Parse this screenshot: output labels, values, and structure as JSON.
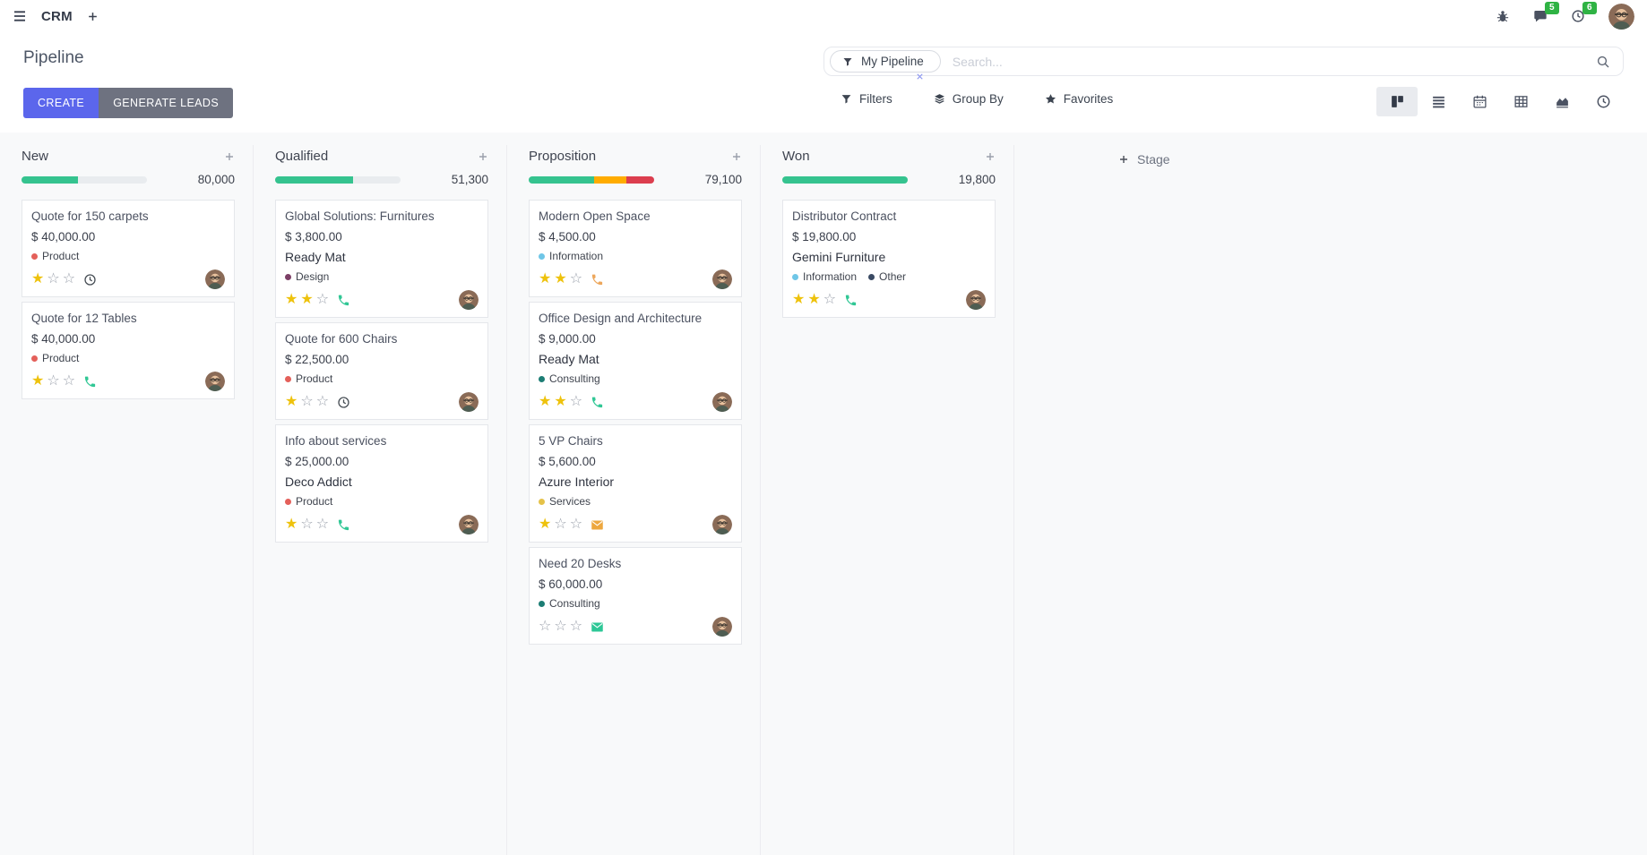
{
  "navbar": {
    "app_name": "CRM",
    "messages_badge": "5",
    "activities_badge": "6"
  },
  "control_panel": {
    "title": "Pipeline",
    "create_label": "CREATE",
    "generate_leads_label": "GENERATE LEADS",
    "search": {
      "facet": "My Pipeline",
      "placeholder": "Search..."
    },
    "menus": {
      "filters": "Filters",
      "group_by": "Group By",
      "favorites": "Favorites"
    }
  },
  "view_switcher": {
    "items": [
      {
        "icon": "kanban-icon",
        "active": true
      },
      {
        "icon": "list-icon",
        "active": false
      },
      {
        "icon": "calendar-icon",
        "active": false
      },
      {
        "icon": "pivot-icon",
        "active": false
      },
      {
        "icon": "graph-icon",
        "active": false
      },
      {
        "icon": "activity-icon",
        "active": false
      }
    ]
  },
  "icons": {
    "menu": "menu-icon",
    "add": "plus-icon",
    "bug": "bug-icon",
    "messages": "chat-icon",
    "activities": "clock-icon",
    "filter": "funnel-icon",
    "group_by": "layers-icon",
    "favorites": "star-icon",
    "search": "search-icon",
    "facet_remove": "close-icon",
    "add_record": "plus-icon",
    "add_stage": "plus-icon",
    "avatar": "avatar-icon"
  },
  "board": {
    "add_stage_label": "Stage",
    "columns": [
      {
        "name": "New",
        "total": "80,000",
        "progress": [
          {
            "color": "#35c38f",
            "pct": 45
          }
        ],
        "cards": [
          {
            "title": "Quote for 150 carpets",
            "amount": "$ 40,000.00",
            "tags": [
              {
                "label": "Product",
                "color": "#e4605a"
              }
            ],
            "stars": 1,
            "activity": {
              "icon": "clock-icon",
              "color": "#495057"
            }
          },
          {
            "title": "Quote for 12 Tables",
            "amount": "$ 40,000.00",
            "tags": [
              {
                "label": "Product",
                "color": "#e4605a"
              }
            ],
            "stars": 1,
            "activity": {
              "icon": "phone-icon",
              "color": "#31c795"
            }
          }
        ]
      },
      {
        "name": "Qualified",
        "total": "51,300",
        "progress": [
          {
            "color": "#35c38f",
            "pct": 62
          }
        ],
        "cards": [
          {
            "title": "Global Solutions: Furnitures",
            "amount": "$ 3,800.00",
            "partner": "Ready Mat",
            "tags": [
              {
                "label": "Design",
                "color": "#7c3f66"
              }
            ],
            "stars": 2,
            "activity": {
              "icon": "phone-icon",
              "color": "#31c795"
            }
          },
          {
            "title": "Quote for 600 Chairs",
            "amount": "$ 22,500.00",
            "tags": [
              {
                "label": "Product",
                "color": "#e4605a"
              }
            ],
            "stars": 1,
            "activity": {
              "icon": "clock-icon",
              "color": "#495057"
            }
          },
          {
            "title": "Info about services",
            "amount": "$ 25,000.00",
            "partner": "Deco Addict",
            "tags": [
              {
                "label": "Product",
                "color": "#e4605a"
              }
            ],
            "stars": 1,
            "activity": {
              "icon": "phone-icon",
              "color": "#31c795"
            }
          }
        ]
      },
      {
        "name": "Proposition",
        "total": "79,100",
        "progress": [
          {
            "color": "#35c38f",
            "pct": 52
          },
          {
            "color": "#ffac00",
            "pct": 26
          },
          {
            "color": "#dc3e4e",
            "pct": 22
          }
        ],
        "cards": [
          {
            "title": "Modern Open Space",
            "amount": "$ 4,500.00",
            "tags": [
              {
                "label": "Information",
                "color": "#6fc6e7"
              }
            ],
            "stars": 2,
            "activity": {
              "icon": "phone-icon",
              "color": "#eda75c"
            }
          },
          {
            "title": "Office Design and Architecture",
            "amount": "$ 9,000.00",
            "partner": "Ready Mat",
            "tags": [
              {
                "label": "Consulting",
                "color": "#1c7d74"
              }
            ],
            "stars": 2,
            "activity": {
              "icon": "phone-icon",
              "color": "#31c795"
            }
          },
          {
            "title": "5 VP Chairs",
            "amount": "$ 5,600.00",
            "partner": "Azure Interior",
            "tags": [
              {
                "label": "Services",
                "color": "#e5c249"
              }
            ],
            "stars": 1,
            "activity": {
              "icon": "envelope-icon",
              "color": "#eda73f"
            }
          },
          {
            "title": "Need 20 Desks",
            "amount": "$ 60,000.00",
            "tags": [
              {
                "label": "Consulting",
                "color": "#1c7d74"
              }
            ],
            "stars": 0,
            "activity": {
              "icon": "envelope-icon",
              "color": "#2dc796"
            }
          }
        ]
      },
      {
        "name": "Won",
        "total": "19,800",
        "progress": [
          {
            "color": "#35c38f",
            "pct": 100
          }
        ],
        "cards": [
          {
            "title": "Distributor Contract",
            "amount": "$ 19,800.00",
            "partner": "Gemini Furniture",
            "tags": [
              {
                "label": "Information",
                "color": "#6fc6e7"
              },
              {
                "label": "Other",
                "color": "#3a4a63"
              }
            ],
            "stars": 2,
            "activity": {
              "icon": "phone-icon",
              "color": "#31c795"
            }
          }
        ]
      }
    ]
  }
}
